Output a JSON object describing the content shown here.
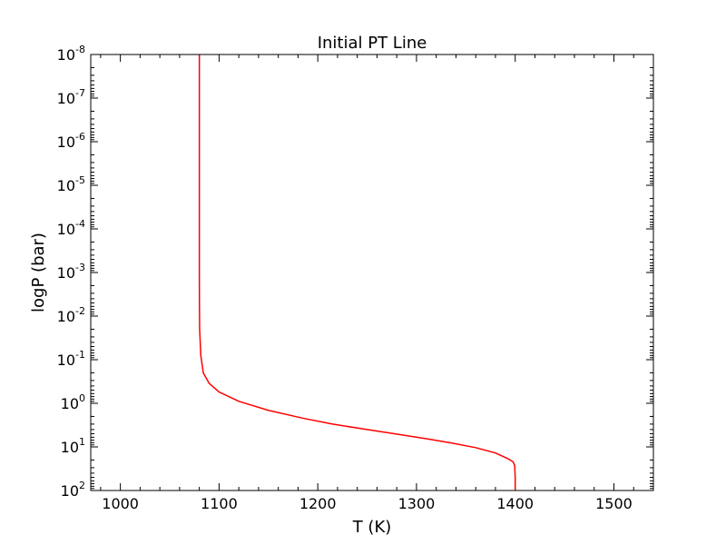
{
  "chart_data": {
    "type": "line",
    "title": "Initial PT Line",
    "xlabel": "T (K)",
    "ylabel": "logP (bar)",
    "xlim": [
      970,
      1540
    ],
    "ylim": [
      100,
      1e-08
    ],
    "y_scale": "log",
    "y_inverted": true,
    "grid": false,
    "x_ticks": [
      1000,
      1100,
      1200,
      1300,
      1400,
      1500
    ],
    "x_tick_labels": [
      "1000",
      "1100",
      "1200",
      "1300",
      "1400",
      "1500"
    ],
    "y_ticks": [
      1e-08,
      1e-07,
      1e-06,
      1e-05,
      0.0001,
      0.001,
      0.01,
      0.1,
      1,
      10,
      100
    ],
    "y_tick_labels": [
      {
        "base": "10",
        "exp": "-8"
      },
      {
        "base": "10",
        "exp": "-7"
      },
      {
        "base": "10",
        "exp": "-6"
      },
      {
        "base": "10",
        "exp": "-5"
      },
      {
        "base": "10",
        "exp": "-4"
      },
      {
        "base": "10",
        "exp": "-3"
      },
      {
        "base": "10",
        "exp": "-2"
      },
      {
        "base": "10",
        "exp": "-1"
      },
      {
        "base": "10",
        "exp": "0"
      },
      {
        "base": "10",
        "exp": "1"
      },
      {
        "base": "10",
        "exp": "2"
      }
    ],
    "series": [
      {
        "color": "#ff0000",
        "x": [
          1080,
          1080,
          1080,
          1080,
          1080.1,
          1080.3,
          1081.5,
          1084,
          1090,
          1100,
          1120,
          1150,
          1185,
          1215,
          1250,
          1285,
          1310,
          1335,
          1360,
          1380,
          1393,
          1398,
          1399.5,
          1400,
          1400
        ],
        "y": [
          1e-08,
          1e-06,
          0.0001,
          0.001,
          0.005,
          0.02,
          0.08,
          0.2,
          0.35,
          0.55,
          0.9,
          1.45,
          2.2,
          3.0,
          4.0,
          5.3,
          6.5,
          8.1,
          10.4,
          13.8,
          18.8,
          22.2,
          27,
          50,
          100
        ]
      }
    ]
  }
}
